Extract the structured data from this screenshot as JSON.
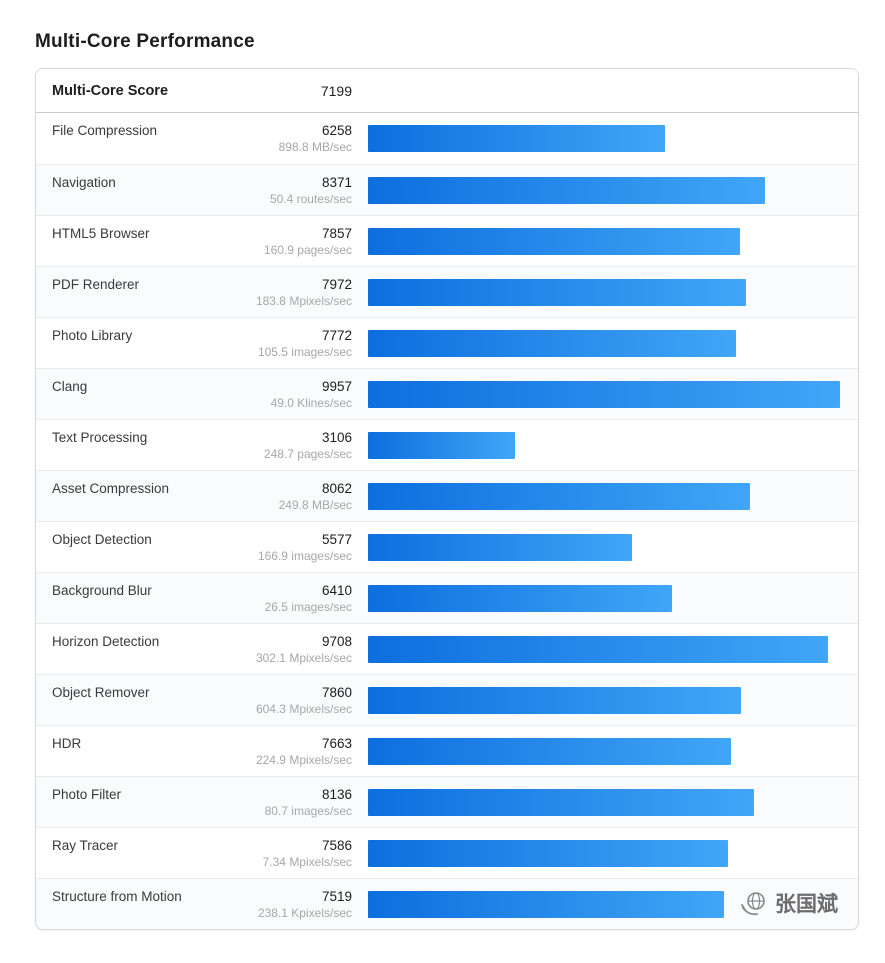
{
  "page": {
    "title": "Multi-Core Performance"
  },
  "header": {
    "label": "Multi-Core Score",
    "score": "7199"
  },
  "watermark": {
    "text": "张国斌"
  },
  "colors": {
    "bar_start": "#0d6ede",
    "bar_end": "#41a6f7"
  },
  "chart_data": {
    "type": "bar",
    "title": "Multi-Core Performance",
    "orientation": "horizontal",
    "xlim": [
      0,
      10000
    ],
    "grid": false,
    "legend": false,
    "header_score": 7199,
    "categories": [
      "File Compression",
      "Navigation",
      "HTML5 Browser",
      "PDF Renderer",
      "Photo Library",
      "Clang",
      "Text Processing",
      "Asset Compression",
      "Object Detection",
      "Background Blur",
      "Horizon Detection",
      "Object Remover",
      "HDR",
      "Photo Filter",
      "Ray Tracer",
      "Structure from Motion"
    ],
    "values": [
      6258,
      8371,
      7857,
      7972,
      7772,
      9957,
      3106,
      8062,
      5577,
      6410,
      9708,
      7860,
      7663,
      8136,
      7586,
      7519
    ],
    "rates": [
      "898.8 MB/sec",
      "50.4 routes/sec",
      "160.9 pages/sec",
      "183.8 Mpixels/sec",
      "105.5 images/sec",
      "49.0 Klines/sec",
      "248.7 pages/sec",
      "249.8 MB/sec",
      "166.9 images/sec",
      "26.5 images/sec",
      "302.1 Mpixels/sec",
      "604.3 Mpixels/sec",
      "224.9 Mpixels/sec",
      "80.7 images/sec",
      "7.34 Mpixels/sec",
      "238.1 Kpixels/sec"
    ]
  }
}
